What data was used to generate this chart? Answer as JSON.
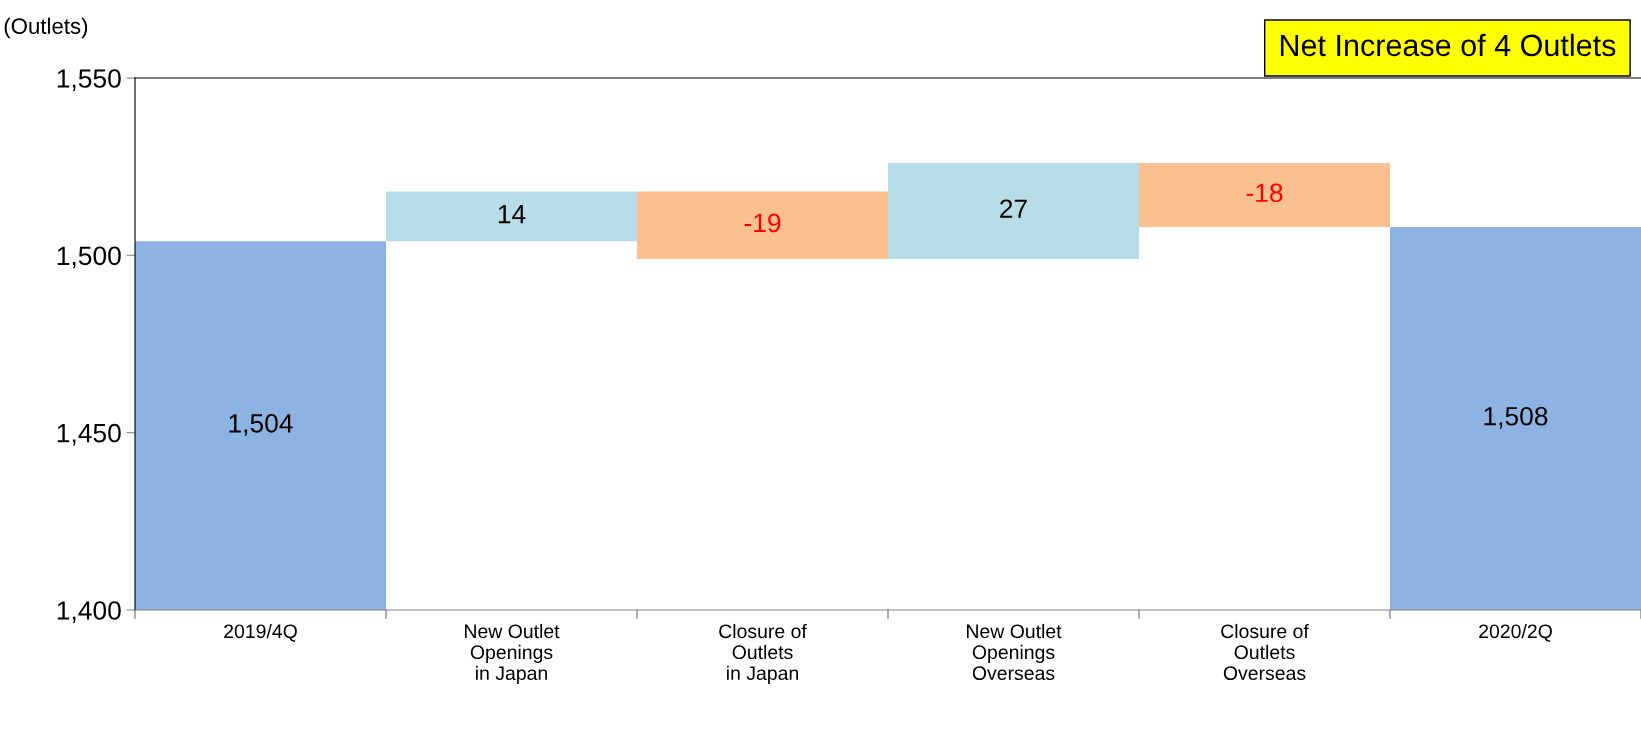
{
  "chart_data": {
    "type": "bar",
    "ylabel": "(Outlets)",
    "categories": [
      "2019/4Q",
      "New Outlet\nOpenings\nin Japan",
      "Closure of\nOutlets\nin Japan",
      "New Outlet\nOpenings\nOverseas",
      "Closure of\nOutlets\nOverseas",
      "2020/2Q"
    ],
    "values": [
      1504,
      14,
      -19,
      27,
      -18,
      1508
    ],
    "base": [
      null,
      1504,
      1518,
      1499,
      1526,
      null
    ],
    "colors": [
      "#8db3e2",
      "#b7dee8",
      "#fac090",
      "#b7dee8",
      "#fac090",
      "#8db3e2"
    ],
    "value_labels": [
      "1,504",
      "14",
      "-19",
      "27",
      "-18",
      "1,508"
    ],
    "ylim": [
      1400,
      1550
    ],
    "yticks": [
      {
        "value": 1400,
        "label": "1,400"
      },
      {
        "value": 1450,
        "label": "1,450"
      },
      {
        "value": 1500,
        "label": "1,500"
      },
      {
        "value": 1550,
        "label": "1,550"
      }
    ],
    "annotations": [
      "Net Increase of 4 Outlets"
    ],
    "grid": false,
    "legend": false
  }
}
